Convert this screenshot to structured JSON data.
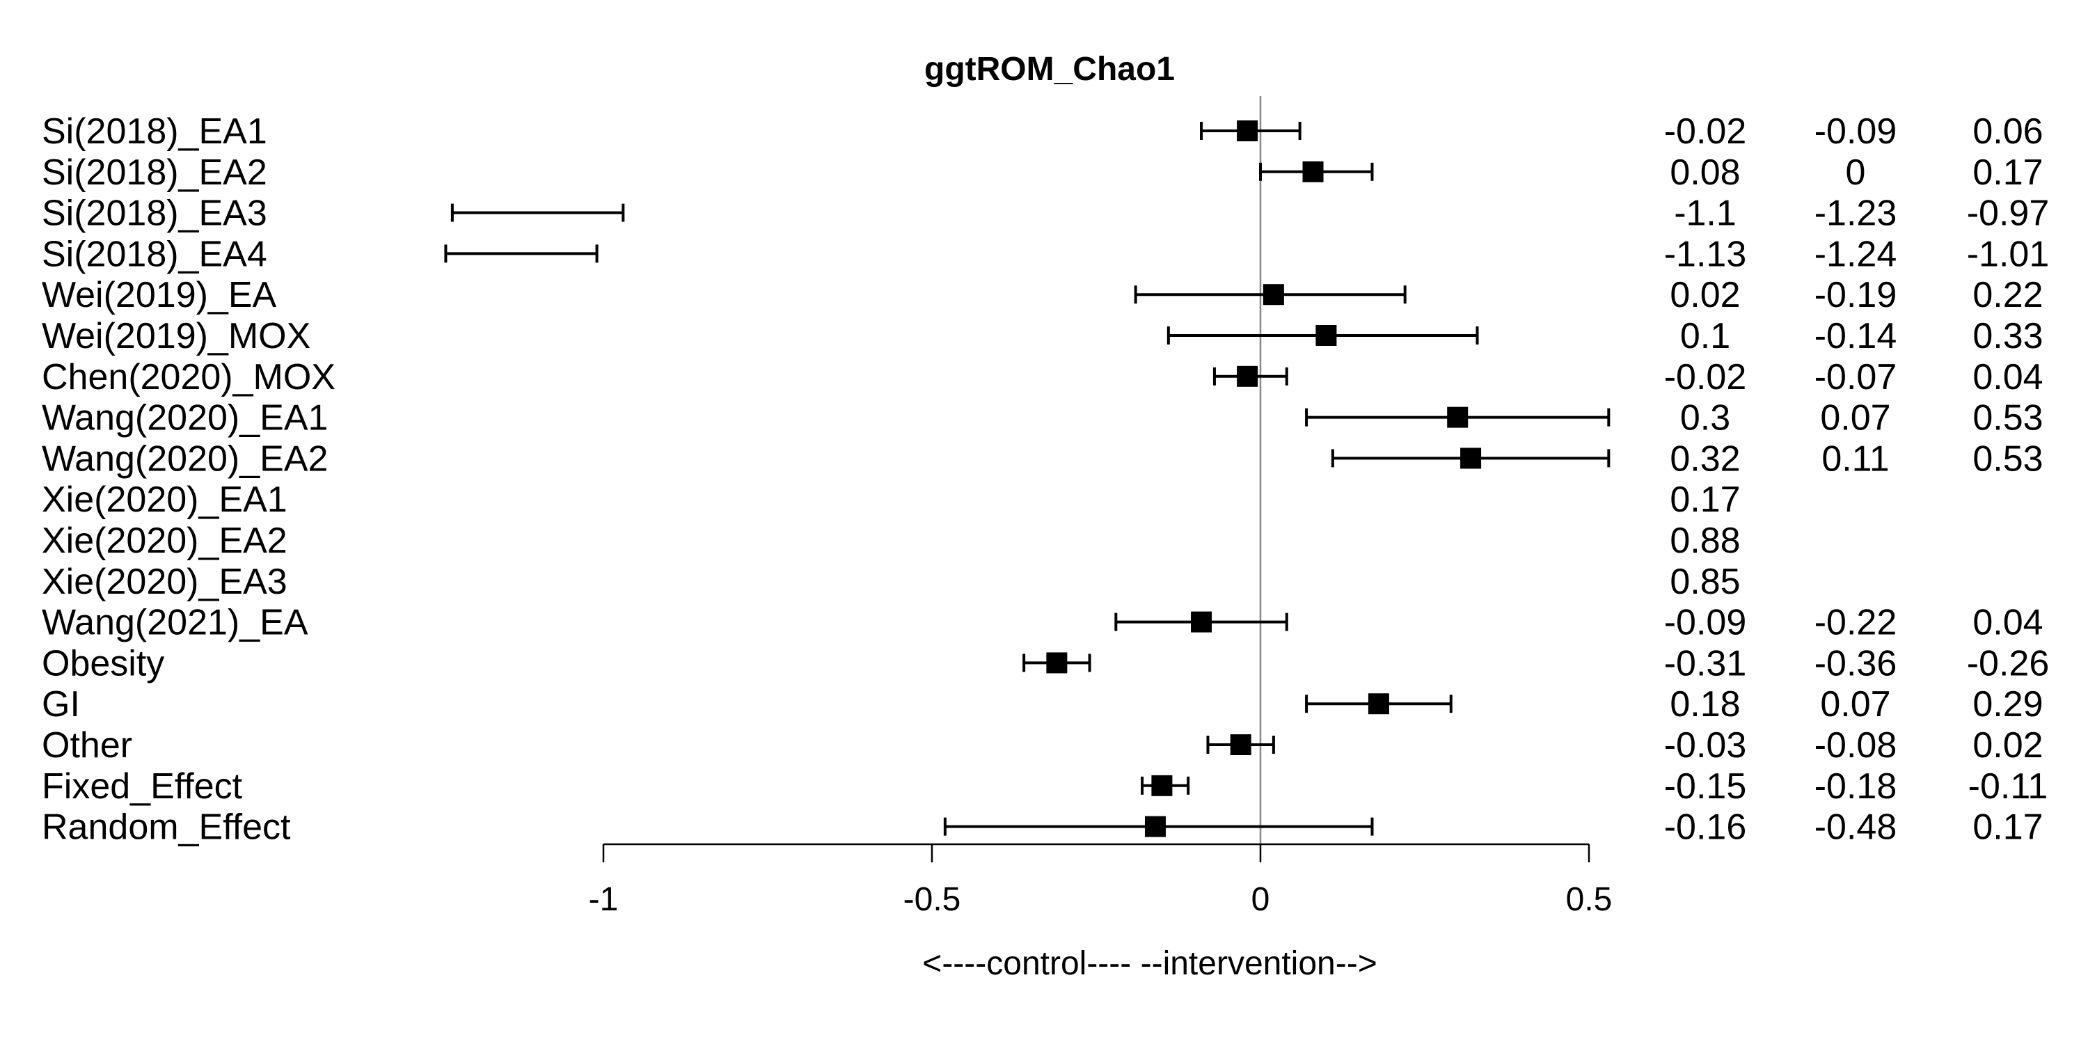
{
  "chart_data": {
    "type": "forest",
    "title": "ggtROM_Chao1",
    "xlabel": "<----control---- --intervention-->",
    "xlim": [
      -1,
      0.5
    ],
    "x_ticks": [
      -1,
      -0.5,
      0,
      0.5
    ],
    "x_tick_labels": [
      "-1",
      "-0.5",
      "0",
      "0.5"
    ],
    "reference_line": 0,
    "rows": [
      {
        "label": "Si(2018)_EA1",
        "est": -0.02,
        "lo": -0.09,
        "hi": 0.06,
        "est_text": "-0.02",
        "lo_text": "-0.09",
        "hi_text": "0.06"
      },
      {
        "label": "Si(2018)_EA2",
        "est": 0.08,
        "lo": 0,
        "hi": 0.17,
        "est_text": "0.08",
        "lo_text": "0",
        "hi_text": "0.17"
      },
      {
        "label": "Si(2018)_EA3",
        "est": -1.1,
        "lo": -1.23,
        "hi": -0.97,
        "est_text": "-1.1",
        "lo_text": "-1.23",
        "hi_text": "-0.97"
      },
      {
        "label": "Si(2018)_EA4",
        "est": -1.13,
        "lo": -1.24,
        "hi": -1.01,
        "est_text": "-1.13",
        "lo_text": "-1.24",
        "hi_text": "-1.01"
      },
      {
        "label": "Wei(2019)_EA",
        "est": 0.02,
        "lo": -0.19,
        "hi": 0.22,
        "est_text": "0.02",
        "lo_text": "-0.19",
        "hi_text": "0.22"
      },
      {
        "label": "Wei(2019)_MOX",
        "est": 0.1,
        "lo": -0.14,
        "hi": 0.33,
        "est_text": "0.1",
        "lo_text": "-0.14",
        "hi_text": "0.33"
      },
      {
        "label": "Chen(2020)_MOX",
        "est": -0.02,
        "lo": -0.07,
        "hi": 0.04,
        "est_text": "-0.02",
        "lo_text": "-0.07",
        "hi_text": "0.04"
      },
      {
        "label": "Wang(2020)_EA1",
        "est": 0.3,
        "lo": 0.07,
        "hi": 0.53,
        "est_text": "0.3",
        "lo_text": "0.07",
        "hi_text": "0.53"
      },
      {
        "label": "Wang(2020)_EA2",
        "est": 0.32,
        "lo": 0.11,
        "hi": 0.53,
        "est_text": "0.32",
        "lo_text": "0.11",
        "hi_text": "0.53"
      },
      {
        "label": "Xie(2020)_EA1",
        "est": 0.17,
        "lo": null,
        "hi": null,
        "est_text": "0.17",
        "lo_text": "",
        "hi_text": ""
      },
      {
        "label": "Xie(2020)_EA2",
        "est": 0.88,
        "lo": null,
        "hi": null,
        "est_text": "0.88",
        "lo_text": "",
        "hi_text": ""
      },
      {
        "label": "Xie(2020)_EA3",
        "est": 0.85,
        "lo": null,
        "hi": null,
        "est_text": "0.85",
        "lo_text": "",
        "hi_text": ""
      },
      {
        "label": "Wang(2021)_EA",
        "est": -0.09,
        "lo": -0.22,
        "hi": 0.04,
        "est_text": "-0.09",
        "lo_text": "-0.22",
        "hi_text": "0.04"
      },
      {
        "label": "Obesity",
        "est": -0.31,
        "lo": -0.36,
        "hi": -0.26,
        "est_text": "-0.31",
        "lo_text": "-0.36",
        "hi_text": "-0.26"
      },
      {
        "label": "GI",
        "est": 0.18,
        "lo": 0.07,
        "hi": 0.29,
        "est_text": "0.18",
        "lo_text": "0.07",
        "hi_text": "0.29"
      },
      {
        "label": "Other",
        "est": -0.03,
        "lo": -0.08,
        "hi": 0.02,
        "est_text": "-0.03",
        "lo_text": "-0.08",
        "hi_text": "0.02"
      },
      {
        "label": "Fixed_Effect",
        "est": -0.15,
        "lo": -0.18,
        "hi": -0.11,
        "est_text": "-0.15",
        "lo_text": "-0.18",
        "hi_text": "-0.11"
      },
      {
        "label": "Random_Effect",
        "est": -0.16,
        "lo": -0.48,
        "hi": 0.17,
        "est_text": "-0.16",
        "lo_text": "-0.48",
        "hi_text": "0.17"
      }
    ]
  }
}
